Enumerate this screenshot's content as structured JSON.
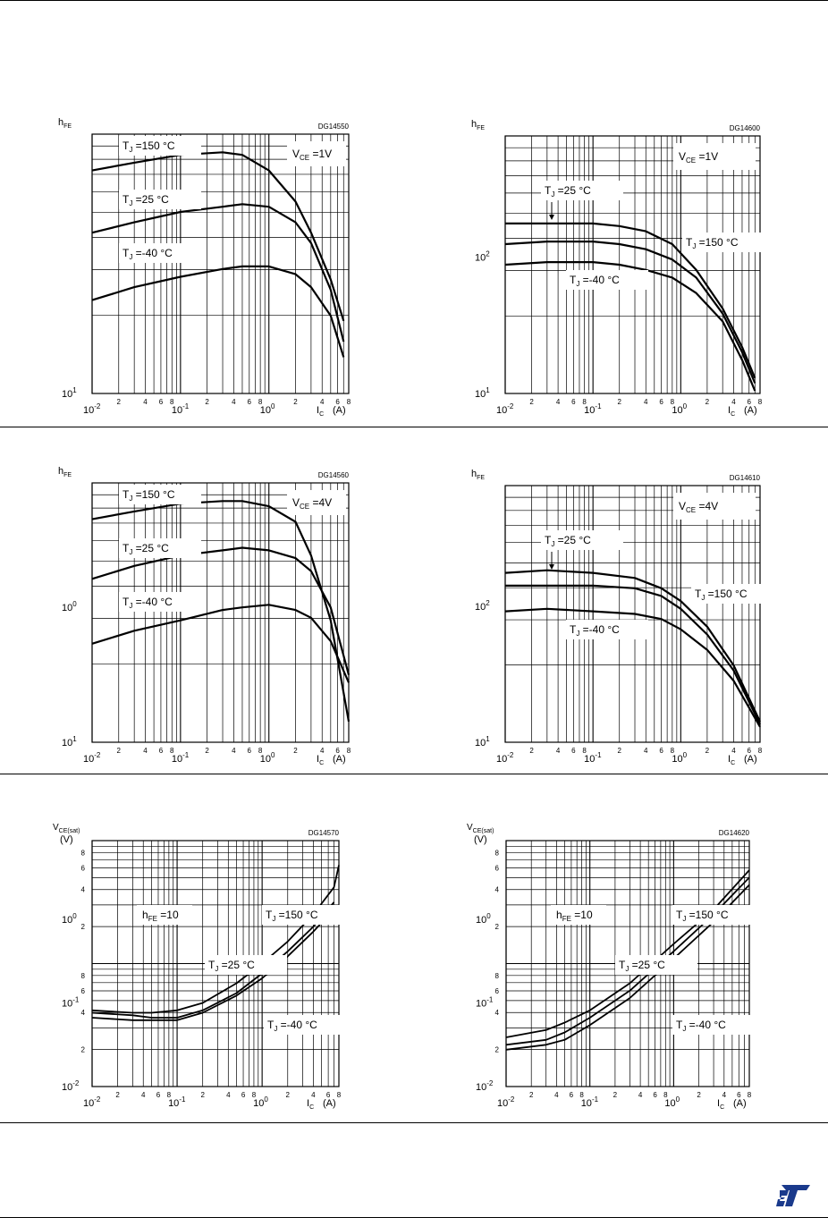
{
  "page": {
    "logo": "st-logo"
  },
  "chart_data": [
    {
      "id": "DG14550",
      "type": "line",
      "code": "DG14550",
      "y_label": [
        "h",
        "FE"
      ],
      "y_ticks": [
        {
          "base": "10",
          "exp": "1"
        }
      ],
      "x_label": [
        "I",
        "C",
        "(A)"
      ],
      "x_scale": "log",
      "x_range": [
        0.01,
        8
      ],
      "x_decades": [
        {
          "base": "10",
          "exp": "-2"
        },
        {
          "base": "10",
          "exp": "-1"
        },
        {
          "base": "10",
          "exp": "0"
        }
      ],
      "x_minor_labels": [
        "2",
        "4",
        "6",
        "8",
        "2",
        "4",
        "6",
        "8",
        "2",
        "4",
        "6",
        "8",
        "2",
        "4",
        "6",
        "8"
      ],
      "condition": {
        "main": "V",
        "sub": "CE",
        "rest": "=1V"
      },
      "series": [
        {
          "label_main": "T",
          "label_sub": "J",
          "label_rest": "=150 °C",
          "x": [
            0.01,
            0.03,
            0.1,
            0.3,
            0.5,
            1,
            2,
            3,
            5,
            7
          ],
          "y": [
            0.86,
            0.89,
            0.92,
            0.93,
            0.92,
            0.86,
            0.74,
            0.62,
            0.44,
            0.28
          ]
        },
        {
          "label_main": "T",
          "label_sub": "J",
          "label_rest": "=25 °C",
          "x": [
            0.01,
            0.03,
            0.1,
            0.3,
            0.5,
            1,
            2,
            3,
            5,
            7
          ],
          "y": [
            0.62,
            0.66,
            0.7,
            0.72,
            0.73,
            0.72,
            0.66,
            0.58,
            0.4,
            0.2
          ]
        },
        {
          "label_main": "T",
          "label_sub": "J",
          "label_rest": "=-40 °C",
          "x": [
            0.01,
            0.03,
            0.1,
            0.3,
            0.5,
            1,
            2,
            3,
            5,
            7
          ],
          "y": [
            0.36,
            0.41,
            0.45,
            0.48,
            0.49,
            0.49,
            0.46,
            0.41,
            0.3,
            0.14
          ]
        }
      ]
    },
    {
      "id": "DG14600",
      "type": "line",
      "code": "DG14600",
      "y_label": [
        "h",
        "FE"
      ],
      "y_ticks": [
        {
          "base": "10",
          "exp": "2"
        },
        {
          "base": "10",
          "exp": "1"
        }
      ],
      "x_label": [
        "I",
        "C",
        "(A)"
      ],
      "x_scale": "log",
      "x_range": [
        0.01,
        8
      ],
      "x_decades": [
        {
          "base": "10",
          "exp": "-2"
        },
        {
          "base": "10",
          "exp": "-1"
        },
        {
          "base": "10",
          "exp": "0"
        }
      ],
      "x_minor_labels": [
        "2",
        "4",
        "6",
        "8",
        "2",
        "4",
        "6",
        "8",
        "2",
        "4",
        "6",
        "8",
        "2",
        "4",
        "6",
        "8"
      ],
      "condition": {
        "main": "V",
        "sub": "CE",
        "rest": "=1V"
      },
      "series": [
        {
          "label_main": "T",
          "label_sub": "J",
          "label_rest": "=150 °C",
          "x": [
            0.01,
            0.03,
            0.1,
            0.2,
            0.4,
            0.8,
            1.5,
            3,
            5,
            7
          ],
          "y": [
            0.66,
            0.66,
            0.66,
            0.65,
            0.63,
            0.58,
            0.48,
            0.33,
            0.18,
            0.06
          ]
        },
        {
          "label_main": "T",
          "label_sub": "J",
          "label_rest": "=25 °C",
          "x": [
            0.01,
            0.03,
            0.1,
            0.2,
            0.4,
            0.8,
            1.5,
            3,
            5,
            7
          ],
          "y": [
            0.58,
            0.59,
            0.59,
            0.58,
            0.56,
            0.52,
            0.45,
            0.31,
            0.16,
            0.04
          ]
        },
        {
          "label_main": "T",
          "label_sub": "J",
          "label_rest": "=-40 °C",
          "x": [
            0.01,
            0.03,
            0.1,
            0.2,
            0.4,
            0.8,
            1.5,
            3,
            5,
            7
          ],
          "y": [
            0.5,
            0.51,
            0.51,
            0.5,
            0.48,
            0.45,
            0.39,
            0.28,
            0.13,
            0.01
          ]
        }
      ]
    },
    {
      "id": "DG14560",
      "type": "line",
      "code": "DG14560",
      "y_label": [
        "h",
        "FE"
      ],
      "y_ticks": [
        {
          "base": "10",
          "exp": "0"
        },
        {
          "base": "10",
          "exp": "1"
        }
      ],
      "x_label": [
        "I",
        "C",
        "(A)"
      ],
      "x_scale": "log",
      "x_range": [
        0.01,
        8
      ],
      "x_decades": [
        {
          "base": "10",
          "exp": "-2"
        },
        {
          "base": "10",
          "exp": "-1"
        },
        {
          "base": "10",
          "exp": "0"
        }
      ],
      "x_minor_labels": [
        "2",
        "4",
        "6",
        "8",
        "2",
        "4",
        "6",
        "8",
        "2",
        "4",
        "6",
        "8",
        "2",
        "4",
        "6",
        "8"
      ],
      "condition": {
        "main": "V",
        "sub": "CE",
        "rest": "=4V"
      },
      "series": [
        {
          "label_main": "T",
          "label_sub": "J",
          "label_rest": "=150 °C",
          "x": [
            0.01,
            0.03,
            0.1,
            0.3,
            0.5,
            1,
            2,
            3,
            5,
            8
          ],
          "y": [
            0.86,
            0.89,
            0.92,
            0.93,
            0.93,
            0.91,
            0.85,
            0.72,
            0.47,
            0.08
          ]
        },
        {
          "label_main": "T",
          "label_sub": "J",
          "label_rest": "=25 °C",
          "x": [
            0.01,
            0.03,
            0.1,
            0.3,
            0.5,
            1,
            2,
            3,
            5,
            8
          ],
          "y": [
            0.63,
            0.68,
            0.72,
            0.74,
            0.75,
            0.74,
            0.71,
            0.66,
            0.52,
            0.26
          ]
        },
        {
          "label_main": "T",
          "label_sub": "J",
          "label_rest": "=-40 °C",
          "x": [
            0.01,
            0.03,
            0.1,
            0.3,
            0.5,
            1,
            2,
            3,
            5,
            8
          ],
          "y": [
            0.38,
            0.43,
            0.47,
            0.51,
            0.52,
            0.53,
            0.51,
            0.48,
            0.39,
            0.23
          ]
        }
      ]
    },
    {
      "id": "DG14610",
      "type": "line",
      "code": "DG14610",
      "y_label": [
        "h",
        "FE"
      ],
      "y_ticks": [
        {
          "base": "10",
          "exp": "2"
        },
        {
          "base": "10",
          "exp": "1"
        }
      ],
      "x_label": [
        "I",
        "C",
        "(A)"
      ],
      "x_scale": "log",
      "x_range": [
        0.01,
        8
      ],
      "x_decades": [
        {
          "base": "10",
          "exp": "-2"
        },
        {
          "base": "10",
          "exp": "-1"
        },
        {
          "base": "10",
          "exp": "0"
        }
      ],
      "x_minor_labels": [
        "2",
        "4",
        "6",
        "8",
        "2",
        "4",
        "6",
        "8",
        "2",
        "4",
        "6",
        "8",
        "2",
        "4",
        "6",
        "8"
      ],
      "condition": {
        "main": "V",
        "sub": "CE",
        "rest": "=4V"
      },
      "series": [
        {
          "label_main": "T",
          "label_sub": "J",
          "label_rest": "=150 °C",
          "x": [
            0.01,
            0.03,
            0.1,
            0.3,
            0.6,
            1,
            2,
            4,
            8
          ],
          "y": [
            0.66,
            0.67,
            0.66,
            0.64,
            0.6,
            0.55,
            0.45,
            0.3,
            0.08
          ]
        },
        {
          "label_main": "T",
          "label_sub": "J",
          "label_rest": "=25 °C",
          "x": [
            0.01,
            0.03,
            0.1,
            0.3,
            0.6,
            1,
            2,
            4,
            8
          ],
          "y": [
            0.61,
            0.61,
            0.61,
            0.6,
            0.57,
            0.52,
            0.42,
            0.28,
            0.07
          ]
        },
        {
          "label_main": "T",
          "label_sub": "J",
          "label_rest": "=-40 °C",
          "x": [
            0.01,
            0.03,
            0.1,
            0.3,
            0.6,
            1,
            2,
            4,
            8
          ],
          "y": [
            0.51,
            0.52,
            0.51,
            0.5,
            0.48,
            0.44,
            0.36,
            0.24,
            0.06
          ]
        }
      ]
    },
    {
      "id": "DG14570",
      "type": "line",
      "code": "DG14570",
      "y_label": [
        "V",
        "CE(sat)",
        "(V)"
      ],
      "y_ticks": [
        {
          "base": "10",
          "exp": "0"
        },
        {
          "base": "10",
          "exp": "-1"
        },
        {
          "base": "10",
          "exp": "-2"
        }
      ],
      "y_minor_labels": [
        "4",
        "2",
        "8",
        "6",
        "4",
        "2",
        "8",
        "6",
        "4",
        "2"
      ],
      "x_label": [
        "I",
        "C",
        "(A)"
      ],
      "x_scale": "log",
      "x_range": [
        0.01,
        8
      ],
      "x_decades": [
        {
          "base": "10",
          "exp": "-2"
        },
        {
          "base": "10",
          "exp": "-1"
        },
        {
          "base": "10",
          "exp": "0"
        }
      ],
      "x_minor_labels": [
        "2",
        "4",
        "6",
        "8",
        "2",
        "4",
        "6",
        "8",
        "2",
        "4",
        "6",
        "8",
        "2",
        "4"
      ],
      "condition": {
        "main": "h",
        "sub": "FE",
        "rest": "=10"
      },
      "series": [
        {
          "label_main": "T",
          "label_sub": "J",
          "label_rest": "=150 °C",
          "x": [
            0.01,
            0.03,
            0.05,
            0.1,
            0.2,
            0.5,
            1,
            2,
            4,
            7,
            8
          ],
          "y": [
            0.31,
            0.3,
            0.3,
            0.31,
            0.34,
            0.42,
            0.5,
            0.59,
            0.7,
            0.81,
            0.9
          ]
        },
        {
          "label_main": "T",
          "label_sub": "J",
          "label_rest": "=25 °C",
          "x": [
            0.01,
            0.03,
            0.05,
            0.1,
            0.2,
            0.5,
            1,
            2,
            4,
            7
          ],
          "y": [
            0.3,
            0.29,
            0.28,
            0.28,
            0.31,
            0.38,
            0.46,
            0.55,
            0.65,
            0.75
          ]
        },
        {
          "label_main": "T",
          "label_sub": "J",
          "label_rest": "=-40 °C",
          "x": [
            0.01,
            0.03,
            0.05,
            0.1,
            0.2,
            0.5,
            1,
            2,
            4,
            7
          ],
          "y": [
            0.28,
            0.27,
            0.27,
            0.27,
            0.3,
            0.37,
            0.44,
            0.53,
            0.63,
            0.72
          ]
        }
      ]
    },
    {
      "id": "DG14620",
      "type": "line",
      "code": "DG14620",
      "y_label": [
        "V",
        "CE(sat)",
        "(V)"
      ],
      "y_ticks": [
        {
          "base": "10",
          "exp": "0"
        },
        {
          "base": "10",
          "exp": "-1"
        },
        {
          "base": "10",
          "exp": "-2"
        }
      ],
      "y_minor_labels": [
        "4",
        "2",
        "8",
        "6",
        "4",
        "2",
        "8",
        "6",
        "4",
        "2"
      ],
      "x_label": [
        "I",
        "C",
        "(A)"
      ],
      "x_scale": "log",
      "x_range": [
        0.01,
        8
      ],
      "x_decades": [
        {
          "base": "10",
          "exp": "-2"
        },
        {
          "base": "10",
          "exp": "-1"
        },
        {
          "base": "10",
          "exp": "0"
        }
      ],
      "x_minor_labels": [
        "2",
        "4",
        "6",
        "8",
        "2",
        "4",
        "6",
        "8",
        "2",
        "4",
        "6",
        "8",
        "2",
        "4"
      ],
      "condition": {
        "main": "h",
        "sub": "FE",
        "rest": "=10"
      },
      "series": [
        {
          "label_main": "T",
          "label_sub": "J",
          "label_rest": "=150 °C",
          "x": [
            0.01,
            0.03,
            0.05,
            0.1,
            0.3,
            1,
            3,
            8
          ],
          "y": [
            0.2,
            0.23,
            0.26,
            0.31,
            0.42,
            0.58,
            0.72,
            0.88
          ]
        },
        {
          "label_main": "T",
          "label_sub": "J",
          "label_rest": "=25 °C",
          "x": [
            0.01,
            0.03,
            0.05,
            0.1,
            0.3,
            1,
            3,
            8
          ],
          "y": [
            0.17,
            0.19,
            0.22,
            0.28,
            0.39,
            0.55,
            0.7,
            0.85
          ]
        },
        {
          "label_main": "T",
          "label_sub": "J",
          "label_rest": "=-40 °C",
          "x": [
            0.01,
            0.03,
            0.05,
            0.1,
            0.3,
            1,
            3,
            8
          ],
          "y": [
            0.15,
            0.17,
            0.19,
            0.25,
            0.36,
            0.52,
            0.67,
            0.82
          ]
        }
      ]
    }
  ]
}
